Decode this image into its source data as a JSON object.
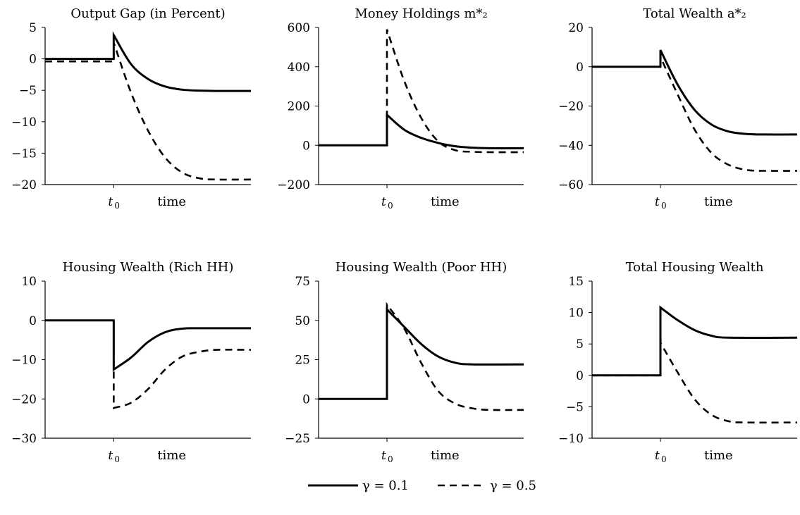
{
  "chart_data": [
    {
      "type": "line",
      "title": "Output Gap (in Percent)",
      "xlabel": "time",
      "x_tick_labels": [
        "t",
        "0"
      ],
      "ylim": [
        -20,
        5
      ],
      "yticks": [
        5,
        0,
        -5,
        -10,
        -15,
        -20
      ],
      "ytick_labels": [
        "5",
        "0",
        "−5",
        "−10",
        "−15",
        "−20"
      ],
      "shock": 1,
      "x_extent": [
        -1,
        5
      ],
      "pre_shock": [
        0,
        -0.4
      ],
      "jump": [
        3.8,
        2.6
      ],
      "steady": [
        -5.1,
        -19.2
      ],
      "series": [
        {
          "name": "γ = 0.1",
          "values": [
            [
              1,
              3.8
            ],
            [
              1.5,
              -0.8
            ],
            [
              2,
              -3.2
            ],
            [
              2.5,
              -4.4
            ],
            [
              3,
              -4.9
            ],
            [
              3.5,
              -5.05
            ],
            [
              4,
              -5.1
            ],
            [
              5,
              -5.1
            ]
          ]
        },
        {
          "name": "γ = 0.5",
          "values": [
            [
              1,
              2.6
            ],
            [
              1.5,
              -5.3
            ],
            [
              2,
              -11.4
            ],
            [
              2.5,
              -15.7
            ],
            [
              3,
              -18.1
            ],
            [
              3.5,
              -19.0
            ],
            [
              4,
              -19.2
            ],
            [
              5,
              -19.2
            ]
          ]
        }
      ]
    },
    {
      "type": "line",
      "title": "Money Holdings m*₂",
      "xlabel": "time",
      "x_tick_labels": [
        "t",
        "0"
      ],
      "ylim": [
        -200,
        600
      ],
      "yticks": [
        600,
        400,
        200,
        0,
        -200
      ],
      "ytick_labels": [
        "600",
        "400",
        "200",
        "0",
        "−200"
      ],
      "shock": 1,
      "x_extent": [
        -1,
        5
      ],
      "pre_shock": [
        0,
        0
      ],
      "jump": [
        155,
        590
      ],
      "steady": [
        -15,
        -35
      ],
      "series": [
        {
          "name": "γ = 0.1",
          "values": [
            [
              1,
              155
            ],
            [
              1.5,
              80
            ],
            [
              2,
              38
            ],
            [
              2.5,
              12
            ],
            [
              3,
              -5
            ],
            [
              3.5,
              -12
            ],
            [
              4,
              -15
            ],
            [
              5,
              -15
            ]
          ]
        },
        {
          "name": "γ = 0.5",
          "values": [
            [
              1,
              590
            ],
            [
              1.5,
              330
            ],
            [
              2,
              140
            ],
            [
              2.5,
              20
            ],
            [
              3,
              -25
            ],
            [
              3.5,
              -33
            ],
            [
              4,
              -35
            ],
            [
              5,
              -35
            ]
          ]
        }
      ]
    },
    {
      "type": "line",
      "title": "Total Wealth a*₂",
      "xlabel": "time",
      "x_tick_labels": [
        "t",
        "0"
      ],
      "ylim": [
        -60,
        20
      ],
      "yticks": [
        20,
        0,
        -20,
        -40,
        -60
      ],
      "ytick_labels": [
        "20",
        "0",
        "−20",
        "−40",
        "−60"
      ],
      "shock": 1,
      "x_extent": [
        -1,
        5
      ],
      "pre_shock": [
        0,
        0
      ],
      "jump": [
        8.5,
        5
      ],
      "steady": [
        -34.5,
        -53
      ],
      "series": [
        {
          "name": "γ = 0.1",
          "values": [
            [
              1,
              8.5
            ],
            [
              1.5,
              -9
            ],
            [
              2,
              -22
            ],
            [
              2.5,
              -29.5
            ],
            [
              3,
              -33
            ],
            [
              3.5,
              -34.2
            ],
            [
              4,
              -34.5
            ],
            [
              5,
              -34.5
            ]
          ]
        },
        {
          "name": "γ = 0.5",
          "values": [
            [
              1,
              5
            ],
            [
              1.5,
              -14
            ],
            [
              2,
              -32
            ],
            [
              2.5,
              -44
            ],
            [
              3,
              -50
            ],
            [
              3.5,
              -52.5
            ],
            [
              4,
              -53
            ],
            [
              5,
              -53
            ]
          ]
        }
      ]
    },
    {
      "type": "line",
      "title": "Housing Wealth (Rich HH)",
      "xlabel": "time",
      "x_tick_labels": [
        "t",
        "0"
      ],
      "ylim": [
        -30,
        10
      ],
      "yticks": [
        10,
        0,
        -10,
        -20,
        -30
      ],
      "ytick_labels": [
        "10",
        "0",
        "−10",
        "−20",
        "−30"
      ],
      "shock": 1,
      "x_extent": [
        -1,
        5
      ],
      "pre_shock": [
        0,
        0
      ],
      "jump": [
        -12.5,
        -22.3
      ],
      "steady": [
        -2,
        -7.5
      ],
      "series": [
        {
          "name": "γ = 0.1",
          "values": [
            [
              1,
              -12.5
            ],
            [
              1.5,
              -9.5
            ],
            [
              2,
              -5.5
            ],
            [
              2.5,
              -3
            ],
            [
              3,
              -2.1
            ],
            [
              3.5,
              -2
            ],
            [
              5,
              -2
            ]
          ]
        },
        {
          "name": "γ = 0.5",
          "values": [
            [
              1,
              -22.3
            ],
            [
              1.5,
              -21
            ],
            [
              2,
              -17.5
            ],
            [
              2.5,
              -12.5
            ],
            [
              3,
              -9.2
            ],
            [
              3.5,
              -8
            ],
            [
              4,
              -7.5
            ],
            [
              5,
              -7.5
            ]
          ]
        }
      ]
    },
    {
      "type": "line",
      "title": "Housing Wealth (Poor HH)",
      "xlabel": "time",
      "x_tick_labels": [
        "t",
        "0"
      ],
      "ylim": [
        -25,
        75
      ],
      "yticks": [
        75,
        50,
        25,
        0,
        -25
      ],
      "ytick_labels": [
        "75",
        "50",
        "25",
        "0",
        "−25"
      ],
      "shock": 1,
      "x_extent": [
        -1,
        5
      ],
      "pre_shock": [
        0,
        0
      ],
      "jump": [
        57,
        60
      ],
      "steady": [
        22,
        -7
      ],
      "series": [
        {
          "name": "γ = 0.1",
          "values": [
            [
              1,
              57
            ],
            [
              1.5,
              46
            ],
            [
              2,
              35
            ],
            [
              2.5,
              27
            ],
            [
              3,
              23
            ],
            [
              3.5,
              22
            ],
            [
              5,
              22
            ]
          ]
        },
        {
          "name": "γ = 0.5",
          "values": [
            [
              1,
              60
            ],
            [
              1.5,
              45
            ],
            [
              2,
              23
            ],
            [
              2.5,
              5
            ],
            [
              3,
              -3
            ],
            [
              3.5,
              -6
            ],
            [
              4,
              -7
            ],
            [
              5,
              -7
            ]
          ]
        }
      ]
    },
    {
      "type": "line",
      "title": "Total Housing Wealth",
      "xlabel": "time",
      "x_tick_labels": [
        "t",
        "0"
      ],
      "ylim": [
        -10,
        15
      ],
      "yticks": [
        15,
        10,
        5,
        0,
        -5,
        -10
      ],
      "ytick_labels": [
        "15",
        "10",
        "5",
        "0",
        "−5",
        "−10"
      ],
      "shock": 1,
      "x_extent": [
        -1,
        5
      ],
      "pre_shock": [
        0,
        0
      ],
      "jump": [
        10.8,
        5.2
      ],
      "steady": [
        6,
        -7.5
      ],
      "series": [
        {
          "name": "γ = 0.1",
          "values": [
            [
              1,
              10.8
            ],
            [
              1.5,
              8.8
            ],
            [
              2,
              7.2
            ],
            [
              2.5,
              6.3
            ],
            [
              3,
              6
            ],
            [
              5,
              6
            ]
          ]
        },
        {
          "name": "γ = 0.5",
          "values": [
            [
              1,
              5.2
            ],
            [
              1.5,
              0.5
            ],
            [
              2,
              -3.8
            ],
            [
              2.5,
              -6.3
            ],
            [
              3,
              -7.3
            ],
            [
              3.5,
              -7.5
            ],
            [
              5,
              -7.5
            ]
          ]
        }
      ]
    }
  ],
  "legend": {
    "items": [
      {
        "label": "γ = 0.1",
        "style": "solid"
      },
      {
        "label": "γ = 0.5",
        "style": "dashed"
      }
    ],
    "placement": "bottom-center"
  },
  "colors": {
    "line": "#000000",
    "background": "#ffffff"
  }
}
